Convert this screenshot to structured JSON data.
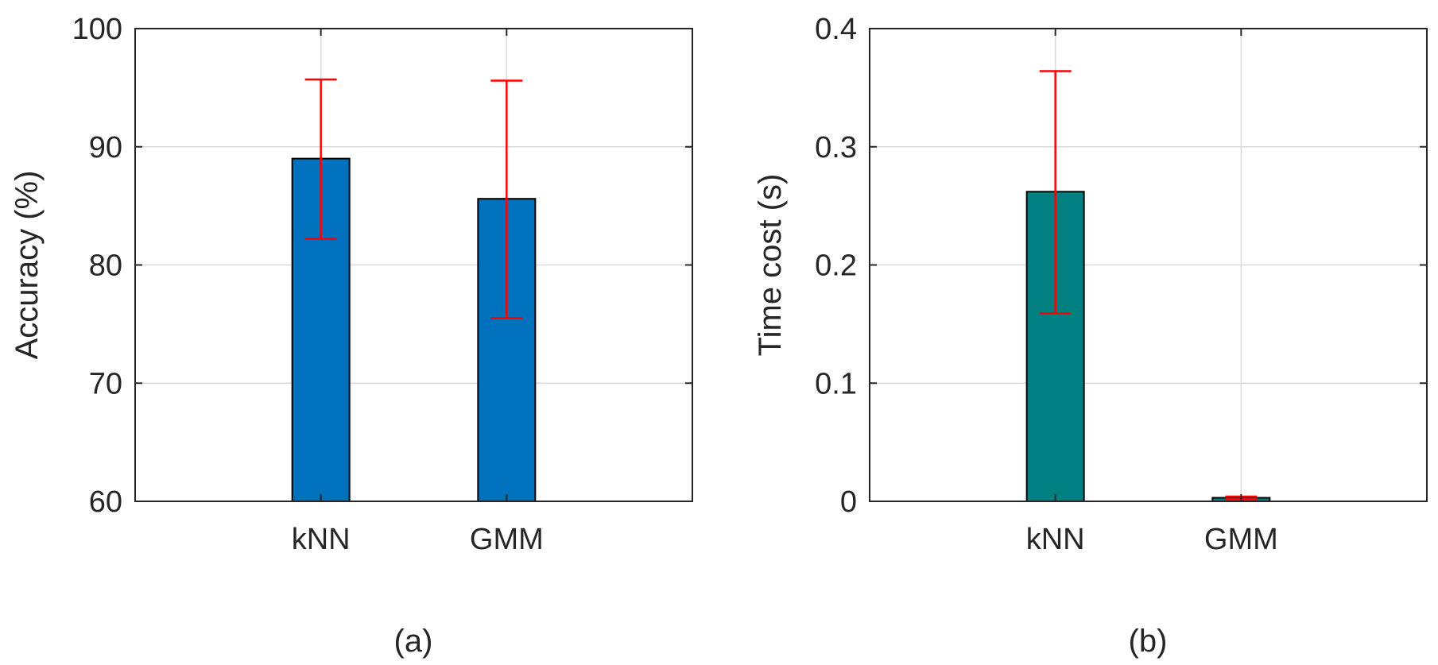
{
  "chart_data": [
    {
      "type": "bar",
      "panel_label": "(a)",
      "categories": [
        "kNN",
        "GMM"
      ],
      "values": [
        89.0,
        85.6
      ],
      "error_low": [
        82.2,
        75.5
      ],
      "error_high": [
        95.7,
        95.6
      ],
      "ylabel": "Accuracy (%)",
      "xlabel": "",
      "ylim": [
        60,
        100
      ],
      "yticks": [
        60,
        70,
        80,
        90,
        100
      ],
      "ytick_labels": [
        "60",
        "70",
        "80",
        "90",
        "100"
      ],
      "grid": true,
      "bar_color": "#0072BD",
      "error_color": "#FF0000"
    },
    {
      "type": "bar",
      "panel_label": "(b)",
      "categories": [
        "kNN",
        "GMM"
      ],
      "values": [
        0.262,
        0.003
      ],
      "error_low": [
        0.159,
        0.002
      ],
      "error_high": [
        0.364,
        0.004
      ],
      "ylabel": "Time cost (s)",
      "xlabel": "",
      "ylim": [
        0,
        0.4
      ],
      "yticks": [
        0,
        0.1,
        0.2,
        0.3,
        0.4
      ],
      "ytick_labels": [
        "0",
        "0.1",
        "0.2",
        "0.3",
        "0.4"
      ],
      "grid": true,
      "bar_color": "#008080",
      "error_color": "#FF0000"
    }
  ]
}
